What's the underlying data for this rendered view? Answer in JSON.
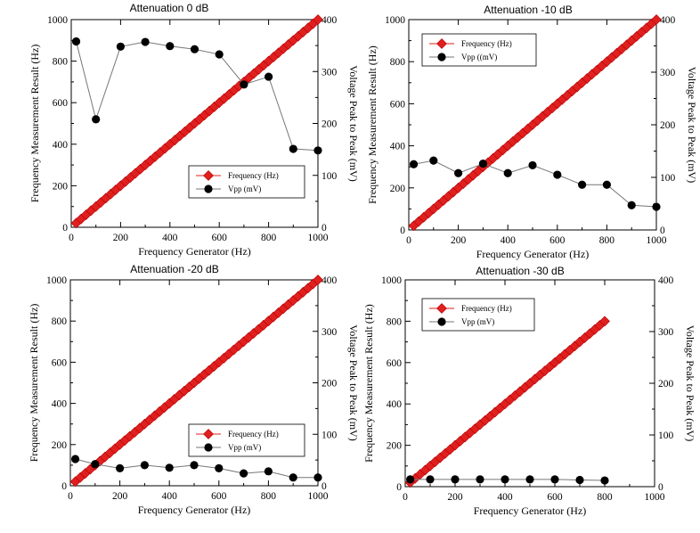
{
  "chart_data": [
    {
      "type": "scatter",
      "title": "Attenuation 0 dB",
      "xlabel": "Frequency Generator (Hz)",
      "ylabel": "Frequency Measurement Result (Hz)",
      "y2label": "Voltage Peak to Peak (mV)",
      "xlim": [
        0,
        1000
      ],
      "ylim": [
        0,
        1000
      ],
      "y2lim": [
        0,
        400
      ],
      "xticks": [
        "0",
        "200",
        "400",
        "600",
        "800",
        "1000"
      ],
      "yticks": [
        "0",
        "200",
        "400",
        "600",
        "800",
        "1000"
      ],
      "y2ticks": [
        "0",
        "100",
        "200",
        "300",
        "400"
      ],
      "legend_position": "bottom-right",
      "freq_series": {
        "name": "Frequency (Hz)",
        "x_start": 20,
        "x_end": 1000,
        "x_step": 20,
        "slope": 1
      },
      "vpp_series": {
        "name": "Vpp (mV)",
        "x": [
          20,
          100,
          200,
          300,
          400,
          500,
          600,
          700,
          800,
          900,
          1000
        ],
        "y": [
          358,
          208,
          348,
          357,
          349,
          343,
          333,
          275,
          290,
          151,
          148
        ]
      }
    },
    {
      "type": "scatter",
      "title": "Attenuation -10 dB",
      "xlabel": "Frequency Generator (Hz)",
      "ylabel": "Frequency Measurement Result (Hz)",
      "y2label": "Voltage Peak to Peak (mV)",
      "xlim": [
        0,
        1000
      ],
      "ylim": [
        0,
        1000
      ],
      "y2lim": [
        0,
        400
      ],
      "xticks": [
        "0",
        "200",
        "400",
        "600",
        "800",
        "1000"
      ],
      "yticks": [
        "0",
        "200",
        "400",
        "600",
        "800",
        "1000"
      ],
      "y2ticks": [
        "0",
        "100",
        "200",
        "300",
        "400"
      ],
      "legend_position": "top-left",
      "freq_series": {
        "name": "Frequency (Hz)",
        "x_start": 20,
        "x_end": 1000,
        "x_step": 20,
        "slope": 1
      },
      "vpp_series": {
        "name": "Vpp ((mV)",
        "x": [
          20,
          100,
          200,
          300,
          400,
          500,
          600,
          700,
          800,
          900,
          1000
        ],
        "y": [
          125,
          132,
          108,
          126,
          108,
          123,
          105,
          86,
          86,
          47,
          44
        ]
      }
    },
    {
      "type": "scatter",
      "title": "Attenuation -20 dB",
      "xlabel": "Frequency Generator (Hz)",
      "ylabel": "Frequency Measurement Result (Hz)",
      "y2label": "Voltage Peak to Peak (mV)",
      "xlim": [
        0,
        1000
      ],
      "ylim": [
        0,
        1000
      ],
      "y2lim": [
        0,
        400
      ],
      "xticks": [
        "0",
        "200",
        "400",
        "600",
        "800",
        "1000"
      ],
      "yticks": [
        "0",
        "200",
        "400",
        "600",
        "800",
        "1000"
      ],
      "y2ticks": [
        "0",
        "100",
        "200",
        "300",
        "400"
      ],
      "legend_position": "bottom-right",
      "freq_series": {
        "name": "Frequency (Hz)",
        "x_start": 20,
        "x_end": 1000,
        "x_step": 20,
        "slope": 1
      },
      "vpp_series": {
        "name": "Vpp (mV)",
        "x": [
          20,
          100,
          200,
          300,
          400,
          500,
          600,
          700,
          800,
          900,
          1000
        ],
        "y": [
          52,
          42,
          34,
          40,
          35,
          40,
          34,
          24,
          28,
          16,
          16
        ]
      }
    },
    {
      "type": "scatter",
      "title": "Attenuation -30 dB",
      "xlabel": "Frequency Generator (Hz)",
      "ylabel": "Frequency Measurement Result (Hz)",
      "y2label": "Voltage Peak to Peak (mV)",
      "xlim": [
        0,
        1000
      ],
      "ylim": [
        0,
        1000
      ],
      "y2lim": [
        0,
        400
      ],
      "xticks": [
        "0",
        "200",
        "400",
        "600",
        "800",
        "1000"
      ],
      "yticks": [
        "0",
        "200",
        "400",
        "600",
        "800",
        "1000"
      ],
      "y2ticks": [
        "0",
        "100",
        "200",
        "300",
        "400"
      ],
      "legend_position": "top-left",
      "freq_series": {
        "name": "Frequency (Hz)",
        "x_start": 20,
        "x_end": 800,
        "x_step": 20,
        "slope": 1
      },
      "vpp_series": {
        "name": "Vpp (mV)",
        "x": [
          20,
          100,
          200,
          300,
          400,
          500,
          600,
          700,
          800
        ],
        "y": [
          14,
          14,
          14,
          14,
          14,
          14,
          14,
          13,
          12
        ]
      }
    }
  ]
}
